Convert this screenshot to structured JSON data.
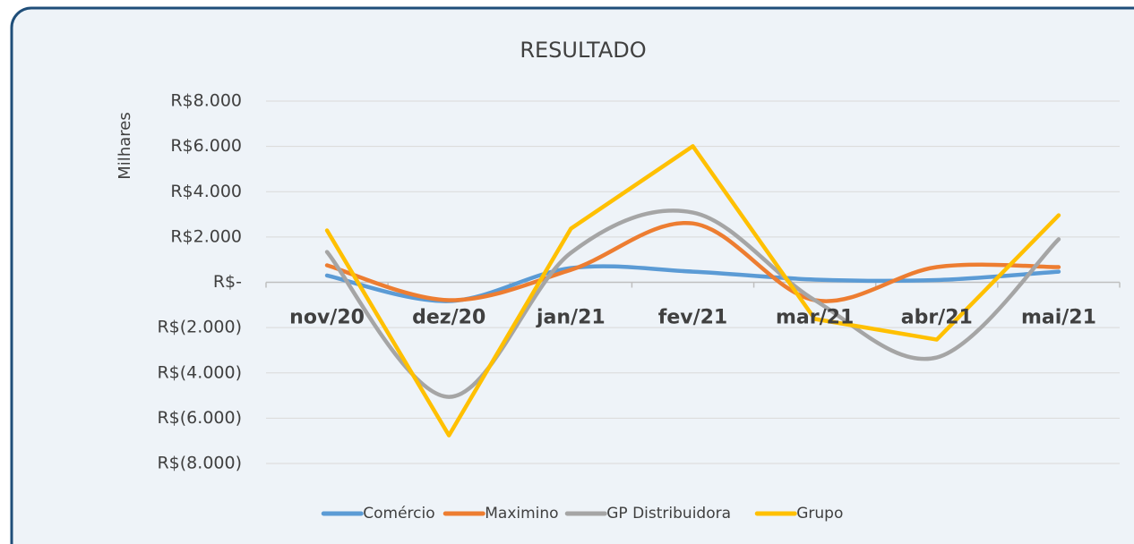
{
  "chart_data": {
    "type": "line",
    "title": "RESULTADO",
    "y_axis_label": "Milhares",
    "categories": [
      "nov/20",
      "dez/20",
      "jan/21",
      "fev/21",
      "mar/21",
      "abr/21",
      "mai/21"
    ],
    "series": [
      {
        "name": "Comércio",
        "color": "#5b9bd5",
        "smooth": true,
        "values": [
          300,
          -830,
          630,
          470,
          120,
          100,
          470
        ]
      },
      {
        "name": "Maximino",
        "color": "#ed7d31",
        "smooth": true,
        "values": [
          750,
          -790,
          550,
          2600,
          -790,
          670,
          670
        ]
      },
      {
        "name": "GP Distribuidora",
        "color": "#a5a5a5",
        "smooth": true,
        "values": [
          1340,
          -5060,
          1300,
          3080,
          -790,
          -3320,
          1900
        ]
      },
      {
        "name": "Grupo",
        "color": "#ffc000",
        "smooth": false,
        "values": [
          2290,
          -6760,
          2370,
          6010,
          -1620,
          -2530,
          2960
        ]
      }
    ],
    "ylim": [
      -8000,
      8000
    ],
    "yticks": [
      {
        "value": 8000,
        "label": "R$8.000"
      },
      {
        "value": 6000,
        "label": "R$6.000"
      },
      {
        "value": 4000,
        "label": "R$4.000"
      },
      {
        "value": 2000,
        "label": "R$2.000"
      },
      {
        "value": 0,
        "label": "R$-"
      },
      {
        "value": -2000,
        "label": "R$(2.000)"
      },
      {
        "value": -4000,
        "label": "R$(4.000)"
      },
      {
        "value": -6000,
        "label": "R$(6.000)"
      },
      {
        "value": -8000,
        "label": "R$(8.000)"
      }
    ],
    "grid": true,
    "legend": "bottom"
  }
}
